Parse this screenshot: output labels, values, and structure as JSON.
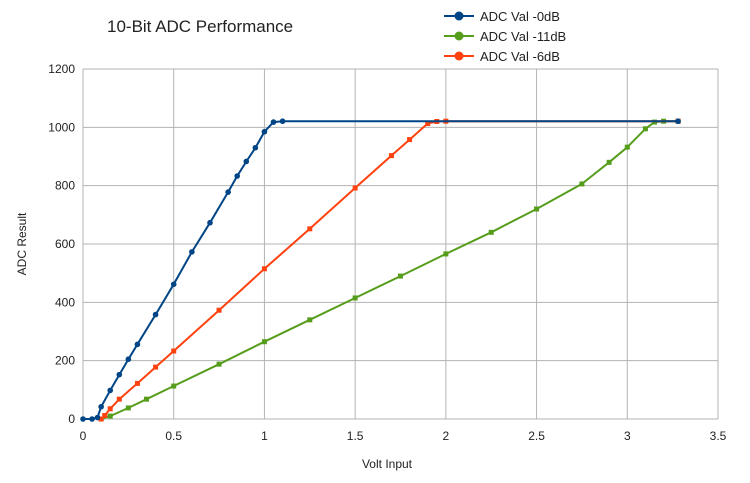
{
  "chart_data": {
    "type": "scatter",
    "title": "10-Bit ADC Performance",
    "xlabel": "Volt Input",
    "ylabel": "ADC Result",
    "xlim": [
      0,
      3.5
    ],
    "ylim": [
      0,
      1200
    ],
    "xticks": [
      0,
      0.5,
      1,
      1.5,
      2,
      2.5,
      3,
      3.5
    ],
    "xtick_labels": [
      "0",
      "0.5",
      "1",
      "1.5",
      "2",
      "2.5",
      "3",
      "3.5"
    ],
    "yticks": [
      0,
      200,
      400,
      600,
      800,
      1000,
      1200
    ],
    "ytick_labels": [
      "0",
      "200",
      "400",
      "600",
      "800",
      "1000",
      "1200"
    ],
    "grid": true,
    "legend_position": "top-right",
    "series": [
      {
        "name": "ADC Val -0dB",
        "color": "#004586",
        "points": [
          [
            0,
            0
          ],
          [
            0.05,
            0
          ],
          [
            0.08,
            5
          ],
          [
            0.1,
            42
          ],
          [
            0.15,
            98
          ],
          [
            0.2,
            152
          ],
          [
            0.25,
            205
          ],
          [
            0.3,
            256
          ],
          [
            0.4,
            358
          ],
          [
            0.5,
            462
          ],
          [
            0.6,
            573
          ],
          [
            0.7,
            673
          ],
          [
            0.8,
            778
          ],
          [
            0.85,
            833
          ],
          [
            0.9,
            883
          ],
          [
            0.95,
            930
          ],
          [
            1.0,
            985
          ],
          [
            1.05,
            1018
          ],
          [
            1.1,
            1021
          ],
          [
            3.28,
            1021
          ]
        ]
      },
      {
        "name": "ADC Val -11dB",
        "color": "#579d1c",
        "points": [
          [
            0.1,
            0
          ],
          [
            0.15,
            10
          ],
          [
            0.25,
            38
          ],
          [
            0.35,
            68
          ],
          [
            0.5,
            113
          ],
          [
            0.75,
            188
          ],
          [
            1.0,
            265
          ],
          [
            1.25,
            340
          ],
          [
            1.5,
            415
          ],
          [
            1.75,
            490
          ],
          [
            2.0,
            566
          ],
          [
            2.25,
            640
          ],
          [
            2.5,
            720
          ],
          [
            2.75,
            806
          ],
          [
            2.9,
            880
          ],
          [
            3.0,
            932
          ],
          [
            3.1,
            995
          ],
          [
            3.15,
            1018
          ],
          [
            3.2,
            1021
          ],
          [
            3.28,
            1021
          ]
        ]
      },
      {
        "name": "ADC Val -6dB",
        "color": "#ff420e",
        "points": [
          [
            0.1,
            0
          ],
          [
            0.12,
            12
          ],
          [
            0.15,
            35
          ],
          [
            0.2,
            68
          ],
          [
            0.3,
            122
          ],
          [
            0.4,
            178
          ],
          [
            0.5,
            233
          ],
          [
            0.75,
            373
          ],
          [
            1.0,
            515
          ],
          [
            1.25,
            652
          ],
          [
            1.5,
            792
          ],
          [
            1.7,
            903
          ],
          [
            1.8,
            958
          ],
          [
            1.9,
            1013
          ],
          [
            1.95,
            1020
          ],
          [
            2.0,
            1021
          ],
          [
            3.28,
            1021
          ]
        ]
      }
    ]
  }
}
